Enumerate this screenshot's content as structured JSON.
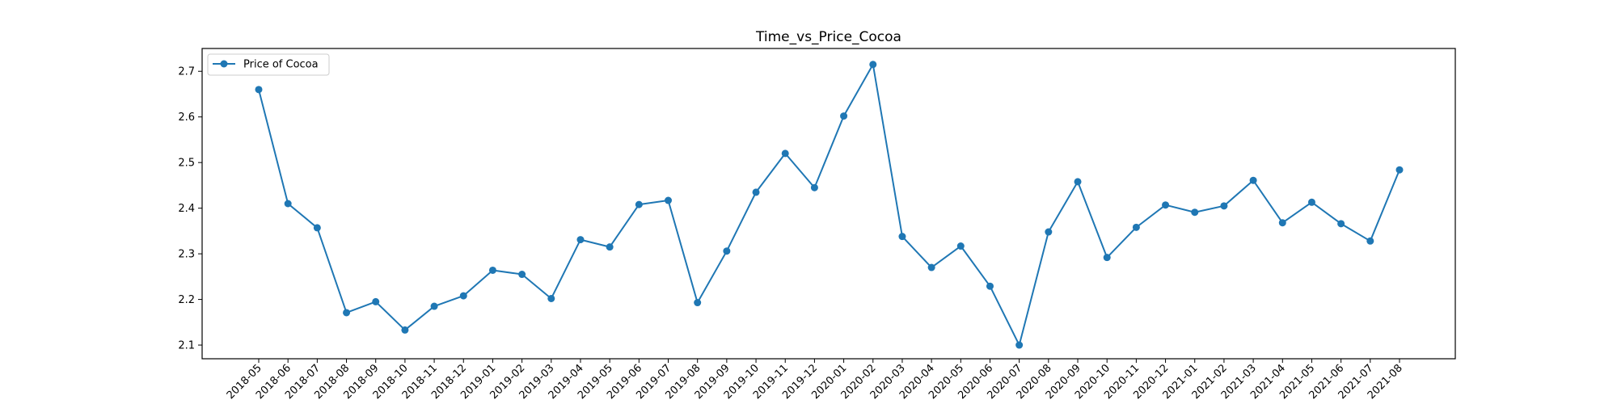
{
  "chart_data": {
    "type": "line",
    "title": "Time_vs_Price_Cocoa",
    "xlabel": "",
    "ylabel": "",
    "grid": false,
    "legend_placement": "upper-left",
    "ylim": [
      2.07,
      2.75
    ],
    "y_ticks": [
      2.1,
      2.2,
      2.3,
      2.4,
      2.5,
      2.6,
      2.7
    ],
    "x_tick_rotation_deg": 45,
    "categories": [
      "2018-05",
      "2018-06",
      "2018-07",
      "2018-08",
      "2018-09",
      "2018-10",
      "2018-11",
      "2018-12",
      "2019-01",
      "2019-02",
      "2019-03",
      "2019-04",
      "2019-05",
      "2019-06",
      "2019-07",
      "2019-08",
      "2019-09",
      "2019-10",
      "2019-11",
      "2019-12",
      "2020-01",
      "2020-02",
      "2020-03",
      "2020-04",
      "2020-05",
      "2020-06",
      "2020-07",
      "2020-08",
      "2020-09",
      "2020-10",
      "2020-11",
      "2020-12",
      "2021-01",
      "2021-02",
      "2021-03",
      "2021-04",
      "2021-05",
      "2021-06",
      "2021-07",
      "2021-08"
    ],
    "series": [
      {
        "name": "Price of Cocoa",
        "color": "#1f77b4",
        "marker": "circle",
        "values": [
          2.66,
          2.41,
          2.357,
          2.171,
          2.195,
          2.133,
          2.185,
          2.208,
          2.264,
          2.255,
          2.202,
          2.331,
          2.315,
          2.408,
          2.417,
          2.193,
          2.306,
          2.435,
          2.52,
          2.445,
          2.602,
          2.715,
          2.338,
          2.27,
          2.317,
          2.229,
          2.1,
          2.348,
          2.458,
          2.292,
          2.358,
          2.407,
          2.391,
          2.405,
          2.461,
          2.368,
          2.413,
          2.366,
          2.328,
          2.484
        ]
      }
    ]
  },
  "colors": {
    "series": "#1f77b4",
    "axes": "#000000",
    "background": "#ffffff",
    "legend_border": "#cccccc"
  }
}
